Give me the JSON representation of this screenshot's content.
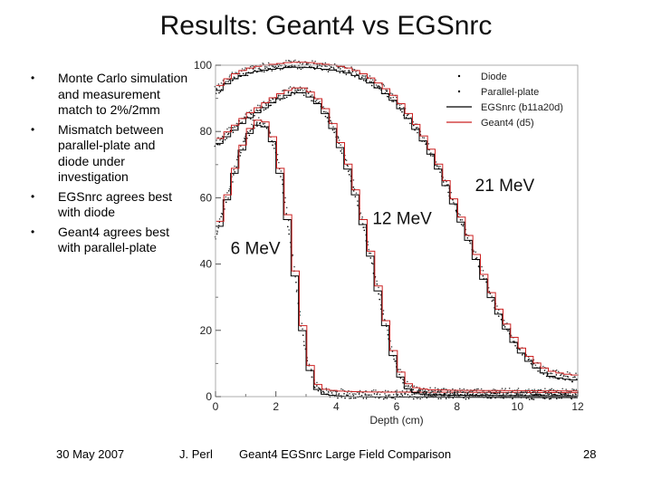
{
  "slide": {
    "title": "Results: Geant4 vs EGSnrc",
    "bullets": [
      "Monte Carlo simulation and measurement match to 2%/2mm",
      "Mismatch between parallel-plate and diode under investigation",
      "EGSnrc agrees best with diode",
      "Geant4 agrees best with parallel-plate"
    ],
    "footer": {
      "date": "30 May 2007",
      "author": "J. Perl",
      "caption": "Geant4 EGSnrc Large Field Comparison",
      "page": "28"
    }
  },
  "chart_data": {
    "type": "line",
    "xlabel": "Depth (cm)",
    "ylabel": "",
    "xlim": [
      0,
      12
    ],
    "ylim": [
      0,
      100
    ],
    "x_ticks": [
      0,
      2,
      4,
      6,
      8,
      10,
      12
    ],
    "y_ticks": [
      0,
      20,
      40,
      60,
      80,
      100
    ],
    "legend_position": "top-right",
    "legend": [
      "Diode",
      "Parallel-plate",
      "EGSnrc (b11a20d)",
      "Geant4 (d5)"
    ],
    "colors": {
      "egsnrc": "#000000",
      "geant4": "#cc2222",
      "diode": "#000000",
      "parallel": "#444444"
    },
    "annotations": [
      {
        "text": "6 MeV",
        "x": 0.5,
        "y": 43
      },
      {
        "text": "12 MeV",
        "x": 5.2,
        "y": 52
      },
      {
        "text": "21 MeV",
        "x": 8.6,
        "y": 62
      }
    ],
    "beams": [
      {
        "energy": "6 MeV",
        "x": [
          0,
          0.25,
          0.5,
          0.75,
          1.0,
          1.25,
          1.5,
          1.75,
          2.0,
          2.25,
          2.5,
          2.75,
          3.0,
          3.25,
          3.5,
          4.0,
          5.0,
          12.0
        ],
        "y": [
          48,
          56,
          64,
          72,
          78,
          82,
          83,
          81,
          74,
          62,
          46,
          28,
          13,
          4,
          1.5,
          0.8,
          0.5,
          0.3
        ]
      },
      {
        "energy": "12 MeV",
        "x": [
          0,
          0.5,
          1.0,
          1.5,
          2.0,
          2.5,
          2.75,
          3.0,
          3.25,
          3.5,
          3.75,
          4.0,
          4.5,
          5.0,
          5.25,
          5.5,
          5.75,
          6.0,
          6.25,
          6.5,
          7.0,
          8.0,
          12.0
        ],
        "y": [
          76,
          80,
          84,
          87,
          90,
          92,
          92.5,
          92,
          90,
          88,
          84,
          79,
          66,
          48,
          38,
          27,
          17,
          9,
          4,
          2,
          1.2,
          1.0,
          0.8
        ]
      },
      {
        "energy": "21 MeV",
        "x": [
          0,
          0.5,
          1.0,
          1.5,
          2.0,
          2.5,
          3.0,
          3.5,
          4.0,
          4.5,
          5.0,
          5.5,
          6.0,
          6.5,
          7.0,
          7.5,
          8.0,
          8.5,
          9.0,
          9.5,
          10.0,
          10.5,
          11.0,
          11.5,
          12.0
        ],
        "y": [
          92,
          96,
          98,
          99,
          99.5,
          100,
          100,
          99.5,
          99,
          98,
          96,
          93,
          89,
          83,
          76,
          67,
          56,
          45,
          33,
          23,
          15,
          10,
          7,
          6,
          5.5
        ]
      }
    ]
  }
}
